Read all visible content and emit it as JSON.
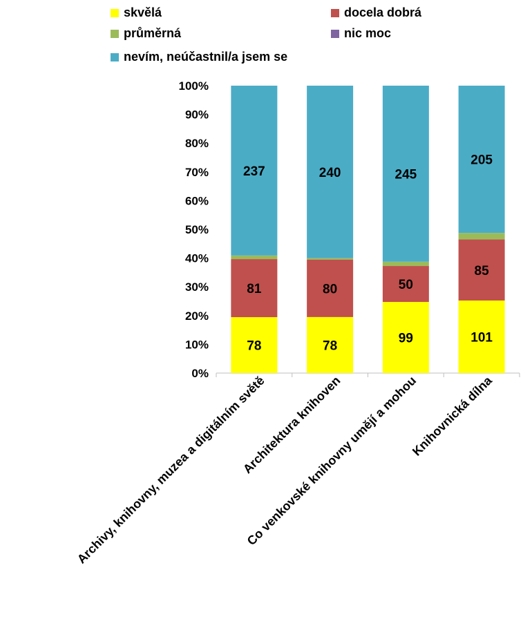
{
  "chart_data": {
    "type": "bar",
    "stacked": "percent",
    "categories": [
      "Archivy, knihovny, muzea a digitálním světě",
      "Architektura knihoven",
      "Co venkovské knihovny umějí a mohou",
      "Knihovnická dílna"
    ],
    "series": [
      {
        "name": "skvělá",
        "color": "#ffff00",
        "values": [
          78,
          78,
          99,
          101
        ]
      },
      {
        "name": "docela dobrá",
        "color": "#c0504d",
        "values": [
          81,
          80,
          50,
          85
        ]
      },
      {
        "name": "průměrná",
        "color": "#9bbb59",
        "values": [
          5,
          2,
          6,
          9
        ]
      },
      {
        "name": "nic moc",
        "color": "#8064a2",
        "values": [
          0,
          0,
          0,
          0
        ]
      },
      {
        "name": "nevím, neúčastnil/a jsem se",
        "color": "#4bacc6",
        "values": [
          237,
          240,
          245,
          205
        ]
      }
    ],
    "labeled_series": [
      "skvělá",
      "docela dobrá",
      "nevím, neúčastnil/a jsem se"
    ],
    "yticks": [
      "0%",
      "10%",
      "20%",
      "30%",
      "40%",
      "50%",
      "60%",
      "70%",
      "80%",
      "90%",
      "100%"
    ],
    "ylim": [
      0,
      100
    ],
    "legend_position": "top",
    "grid": false
  }
}
